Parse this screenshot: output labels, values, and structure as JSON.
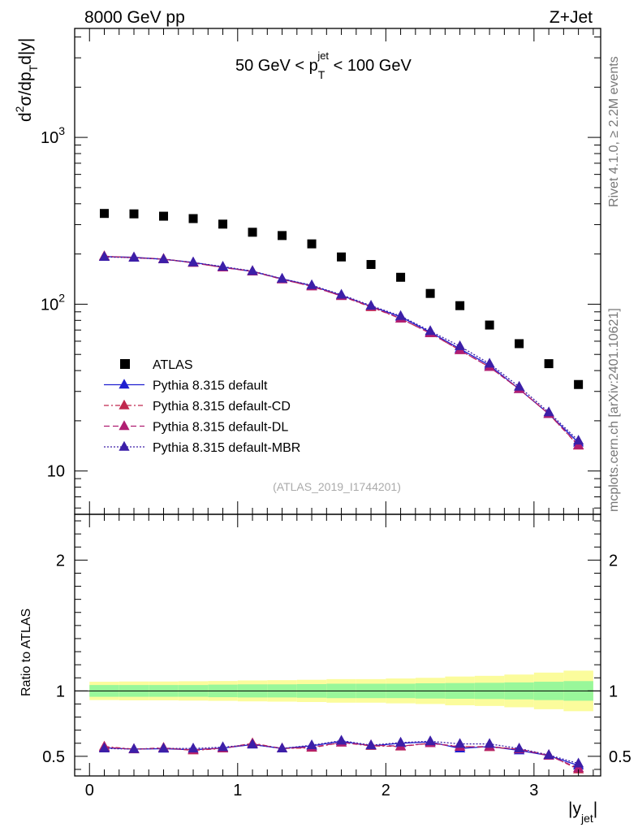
{
  "header": {
    "energy": "8000 GeV pp",
    "process": "Z+Jet",
    "cut_prefix": "50 GeV < p",
    "cut_sub": "T",
    "cut_sup": "jet",
    "cut_suffix": " < 100 GeV",
    "analysis_id": "(ATLAS_2019_I1744201)",
    "side_rivet": "Rivet 4.1.0, ≥ 2.2M events",
    "side_mcplots": "mcplots.cern.ch [arXiv:2401.10621]"
  },
  "axes": {
    "ylabel_d": "d",
    "ylabel_sup2": "2",
    "ylabel_mid": "σ/dp",
    "ylabel_subT": "T",
    "ylabel_end": "d|y|",
    "ratio_ylabel": "Ratio to ATLAS",
    "xlabel_main": "|y",
    "xlabel_sub": "jet",
    "xlabel_end": "|"
  },
  "colors": {
    "data": "#000000",
    "default": "#1f1fd0",
    "cd": "#c0284e",
    "dl": "#b01e72",
    "mbr": "#3c1fa8",
    "band_inner": "#99f79a",
    "band_outer": "#fbfc9c"
  },
  "chart_data": {
    "type": "scatter",
    "title": "50 GeV < p_T^jet < 100 GeV",
    "xlabel": "|y_jet|",
    "ylabel": "d²σ/dp_T d|y|",
    "ratio_ylabel": "Ratio to ATLAS",
    "xlim": [
      -0.1,
      3.45
    ],
    "ylim": [
      5.5,
      4500
    ],
    "yscale": "log",
    "ratio_ylim": [
      0.35,
      2.35
    ],
    "x_ticks": [
      0,
      1,
      2,
      3
    ],
    "x_tick_labels": [
      "0",
      "1",
      "2",
      "3"
    ],
    "y_ticks": [
      10,
      100,
      1000
    ],
    "y_tick_labels": [
      "10",
      "10",
      "10"
    ],
    "y_tick_exps": [
      "",
      "2",
      "3"
    ],
    "ratio_ticks": [
      0.5,
      1,
      2
    ],
    "ratio_tick_labels": [
      "0.5",
      "1",
      "2"
    ],
    "x": [
      0.1,
      0.3,
      0.5,
      0.7,
      0.9,
      1.1,
      1.3,
      1.5,
      1.7,
      1.9,
      2.1,
      2.3,
      2.5,
      2.7,
      2.9,
      3.1,
      3.3
    ],
    "bin_edges": [
      0.0,
      0.2,
      0.4,
      0.6,
      0.8,
      1.0,
      1.2,
      1.4,
      1.6,
      1.8,
      2.0,
      2.2,
      2.4,
      2.6,
      2.8,
      3.0,
      3.2,
      3.4
    ],
    "legend_position": "lower-left",
    "series": [
      {
        "name": "ATLAS",
        "key": "data",
        "marker": "square",
        "values": [
          350,
          348,
          337,
          326,
          302,
          270,
          258,
          230,
          192,
          173,
          145,
          116,
          98,
          75,
          58,
          44,
          33
        ]
      },
      {
        "name": "Pythia 8.315 default",
        "key": "default",
        "marker": "triangle",
        "dash": "",
        "values": [
          193,
          191,
          186,
          178,
          167,
          157,
          142,
          129,
          113,
          97,
          84,
          68,
          54,
          43,
          31,
          22,
          14.8
        ],
        "ratio": [
          0.565,
          0.555,
          0.558,
          0.55,
          0.563,
          0.59,
          0.56,
          0.58,
          0.615,
          0.58,
          0.6,
          0.61,
          0.56,
          0.575,
          0.545,
          0.505,
          0.43
        ]
      },
      {
        "name": "Pythia 8.315 default-CD",
        "key": "cd",
        "marker": "triangle",
        "dash": "6,3,2,3",
        "values": [
          194,
          190,
          187,
          177,
          166,
          158,
          141,
          128,
          112,
          96,
          82,
          67,
          53,
          42,
          31,
          22,
          14.2
        ],
        "ratio": [
          0.575,
          0.555,
          0.565,
          0.545,
          0.56,
          0.6,
          0.56,
          0.565,
          0.605,
          0.58,
          0.575,
          0.6,
          0.575,
          0.57,
          0.555,
          0.51,
          0.4
        ]
      },
      {
        "name": "Pythia 8.315 default-DL",
        "key": "dl",
        "marker": "triangle",
        "dash": "7,4",
        "values": [
          193,
          190,
          186,
          177,
          166,
          157,
          141,
          128,
          112,
          97,
          82,
          67,
          53,
          42,
          31,
          22,
          14.3
        ],
        "ratio": [
          0.57,
          0.553,
          0.562,
          0.55,
          0.562,
          0.595,
          0.56,
          0.57,
          0.605,
          0.585,
          0.578,
          0.6,
          0.572,
          0.575,
          0.553,
          0.505,
          0.41
        ]
      },
      {
        "name": "Pythia 8.315 default-MBR",
        "key": "mbr",
        "marker": "triangle",
        "dash": "2,2",
        "values": [
          192,
          190,
          186,
          178,
          168,
          158,
          142,
          130,
          114,
          98,
          85,
          69,
          56,
          44,
          32,
          22.5,
          15.2
        ],
        "ratio": [
          0.56,
          0.555,
          0.56,
          0.56,
          0.57,
          0.59,
          0.56,
          0.585,
          0.62,
          0.585,
          0.605,
          0.615,
          0.595,
          0.595,
          0.56,
          0.51,
          0.445
        ]
      }
    ],
    "band_inner": [
      0.045,
      0.045,
      0.045,
      0.045,
      0.048,
      0.05,
      0.05,
      0.052,
      0.055,
      0.055,
      0.055,
      0.058,
      0.06,
      0.062,
      0.065,
      0.07,
      0.075
    ],
    "band_outer": [
      0.07,
      0.072,
      0.072,
      0.074,
      0.076,
      0.08,
      0.082,
      0.085,
      0.09,
      0.09,
      0.095,
      0.1,
      0.11,
      0.115,
      0.125,
      0.14,
      0.155
    ]
  }
}
